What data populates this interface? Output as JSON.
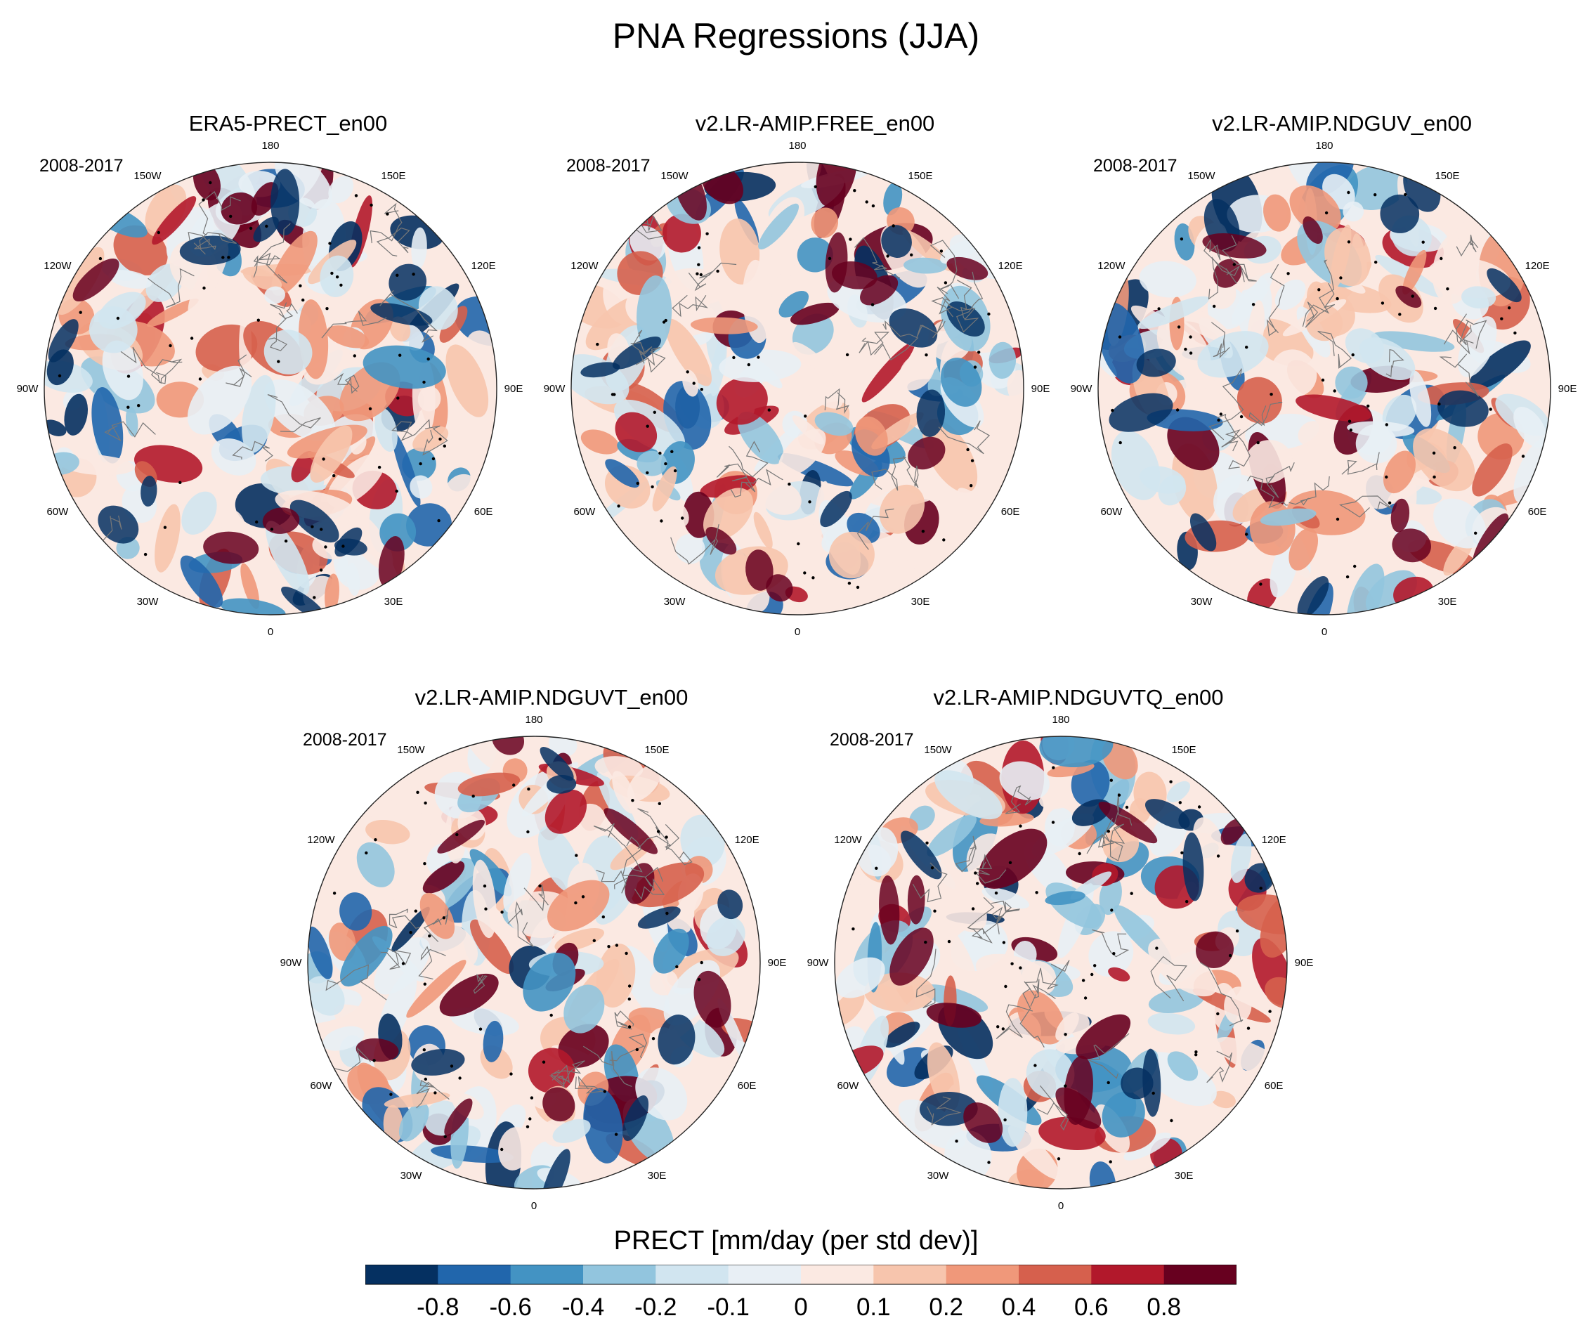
{
  "title": "PNA Regressions (JJA)",
  "period": "2008-2017",
  "lon_labels": [
    "180",
    "150E",
    "120E",
    "90E",
    "60E",
    "30E",
    "0",
    "30W",
    "60W",
    "90W",
    "120W",
    "150W"
  ],
  "panels": [
    {
      "title": "ERA5-PRECT_en00",
      "seed": 11
    },
    {
      "title": "v2.LR-AMIP.FREE_en00",
      "seed": 23
    },
    {
      "title": "v2.LR-AMIP.NDGUV_en00",
      "seed": 37
    },
    {
      "title": "v2.LR-AMIP.NDGUVT_en00",
      "seed": 41
    },
    {
      "title": "v2.LR-AMIP.NDGUVTQ_en00",
      "seed": 53
    }
  ],
  "colorbar": {
    "title": "PRECT [mm/day (per std dev)]",
    "colors": [
      "#053061",
      "#2166ac",
      "#4393c3",
      "#92c5de",
      "#d1e5f0",
      "#e8eff5",
      "#fbe9e2",
      "#f7c5ad",
      "#f0987a",
      "#d6604d",
      "#b2182b",
      "#67001f"
    ],
    "ticks": [
      "-0.8",
      "-0.6",
      "-0.4",
      "-0.2",
      "-0.1",
      "0",
      "0.1",
      "0.2",
      "0.4",
      "0.6",
      "0.8"
    ]
  }
}
